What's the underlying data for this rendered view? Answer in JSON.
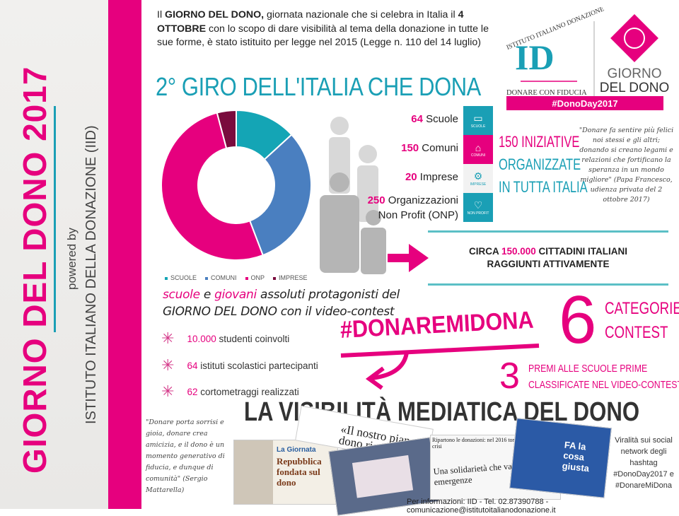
{
  "sidebar": {
    "title": "GIORNO DEL DONO 2017",
    "powered_by": "powered by",
    "institute": "ISTITUTO ITALIANO DELLA DONAZIONE (IID)"
  },
  "intro": {
    "p1": "Il ",
    "b1": "GIORNO DEL DONO,",
    "p2": " giornata nazionale che si celebra in Italia il ",
    "b2": "4 OTTOBRE",
    "p3": " con lo scopo di dare visibilità al tema della donazione in tutte le sue forme, è stato istituito per legge nel 2015 (Legge n. 110 del 14 luglio)"
  },
  "logo": {
    "arc_text": "ISTITUTO ITALIANO DONAZIONE",
    "monogram": "ID",
    "tagline": "DONARE CON FIDUCIA",
    "brand_line1": "GIORNO",
    "brand_line2": "DEL DONO",
    "hashtag": "#DonoDay2017"
  },
  "giro_title": "2° GIRO DELL'ITALIA CHE DONA",
  "colors": {
    "pink": "#e6007e",
    "teal": "#1a9fb5",
    "blue": "#4a7fc0",
    "maroon": "#7a0b3d"
  },
  "chart_data": {
    "type": "pie",
    "donut": true,
    "categories": [
      "SCUOLE",
      "COMUNI",
      "ONP",
      "IMPRESE"
    ],
    "values": [
      64,
      150,
      250,
      20
    ],
    "colors": [
      "#14a5b5",
      "#4a7fc0",
      "#e6007e",
      "#7a0b3d"
    ],
    "legend": "bottom"
  },
  "stats": [
    {
      "num": "64",
      "label": " Scuole"
    },
    {
      "num": "150",
      "label": " Comuni"
    },
    {
      "num": "20",
      "label": " Imprese"
    },
    {
      "num": "250",
      "label": " Organizzazioni",
      "label2": "Non Profit (ONP)"
    }
  ],
  "tiles": [
    {
      "icon": "book-icon",
      "label": "SCUOLE",
      "color": "#1a9fb5"
    },
    {
      "icon": "building-icon",
      "label": "COMUNI",
      "color": "#e6007e"
    },
    {
      "icon": "gears-icon",
      "label": "IMPRESE",
      "color": "#f2f2f2"
    },
    {
      "icon": "heart-icon",
      "label": "NON PROFIT",
      "color": "#1a9fb5"
    }
  ],
  "iniziative": {
    "num": "150",
    "l1": " INIZIATIVE",
    "l2": "ORGANIZZATE",
    "l3": "IN TUTTA ITALIA"
  },
  "papa_quote": "\"Donare fa sentire più felici noi stessi e gli altri; donando si creano legami e relazioni che fortificano la speranza in un mondo migliore\" (Papa Francesco, udienza privata del 2 ottobre 2017)",
  "citizens": {
    "pre": "CIRCA ",
    "num": "150.000",
    "post": " CITTADINI ITALIANI",
    "line2": "RAGGIUNTI ATTIVAMENTE"
  },
  "protag": {
    "w1": "scuole",
    "w2": " e ",
    "w3": "giovani",
    "w4": " assoluti protagonisti del",
    "line2": "GIORNO DEL DONO con il video-contest"
  },
  "bullets": [
    {
      "num": "10.000",
      "text": " studenti coinvolti"
    },
    {
      "num": "64",
      "text": " istituti scolastici partecipanti"
    },
    {
      "num": "62",
      "text": " cortometraggi realizzati"
    }
  ],
  "contest": {
    "hashtag": "#DONAREMIDONA",
    "six": "6",
    "cat1": "CATEGORIE",
    "cat2": "CONTEST",
    "three": "3",
    "premi1": "PREMI ALLE SCUOLE PRIME",
    "premi2": "CLASSIFICATE NEL VIDEO-CONTEST"
  },
  "visibility_title": "LA VISIBILITÀ MEDIATICA DEL DONO",
  "mattarella_quote": "\"Donare porta sorrisi e gioia, donare crea amicizia, e il dono è un momento generativo di fiducia, e dunque di comunità\" (Sergio Mattarella)",
  "clips": {
    "giornata": "La Giornata",
    "repubblica": "Repubblica fondata sul dono",
    "pianeta": "«Il nostro pianeta dono ricevuto da co",
    "ripartono": "Ripartono le donazioni: nel 2016 tornate ai livelli pre-crisi",
    "solidarieta": "Una solidarietà che va oltre le emergenze",
    "fa": "FA la cosa giusta"
  },
  "viral": "Viralità sui social network degli hashtag #DonoDay2017 e #DonareMiDona",
  "footer": "Per informazioni: IID - Tel. 02.87390788 - comunicazione@istitutoitalianodonazione.it"
}
